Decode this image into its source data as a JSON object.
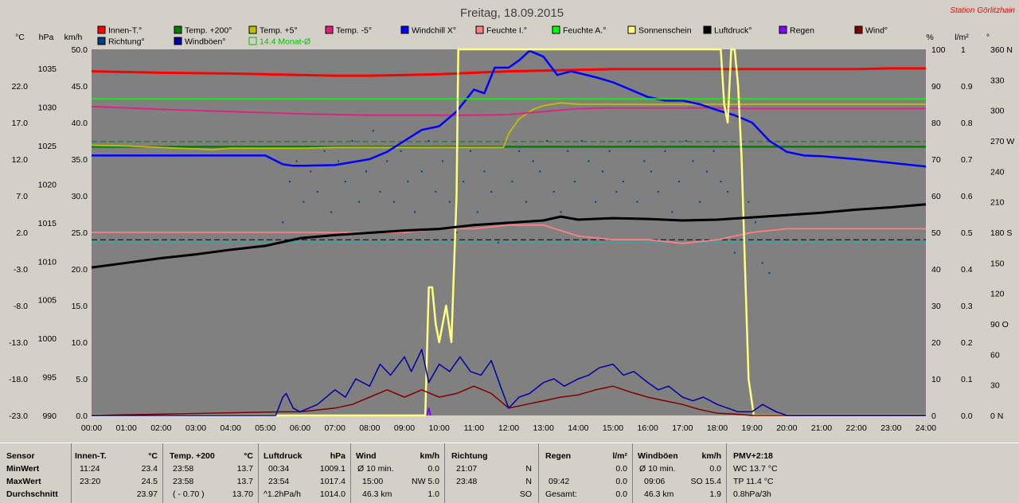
{
  "window": {
    "title": "Freitag, 18.09.2015",
    "station": "Station Görlitzhain"
  },
  "colors": {
    "plot_bg": "#808080",
    "page_bg": "#d4d0c8",
    "innen": "#ff0000",
    "temp200": "#008000",
    "temp5": "#c0c000",
    "temp_5": "#e0207f",
    "windchill": "#0000ff",
    "feuchte_i": "#ff8080",
    "feuchte_a": "#00ff00",
    "sonne": "#ffff80",
    "luftdruck": "#000000",
    "regen": "#8000ff",
    "wind": "#800000",
    "richtung": "#004080",
    "windboeen": "#0000a0"
  },
  "legend": [
    {
      "label": "Innen-T.°",
      "color": "#ff0000"
    },
    {
      "label": "Temp. +200°",
      "color": "#008000"
    },
    {
      "label": "Temp. +5°",
      "color": "#c0c000"
    },
    {
      "label": "Temp. -5°",
      "color": "#e0207f"
    },
    {
      "label": "Windchill X°",
      "color": "#0000ff"
    },
    {
      "label": "Feuchte I.°",
      "color": "#ff8080"
    },
    {
      "label": "Feuchte A.°",
      "color": "#00ff00"
    },
    {
      "label": "Sonnenschein",
      "color": "#ffff80"
    },
    {
      "label": "Luftdruck°",
      "color": "#000000"
    },
    {
      "label": "Regen",
      "color": "#8000ff"
    },
    {
      "label": "Wind°",
      "color": "#800000"
    },
    {
      "label": "Richtung°",
      "color": "#004080"
    },
    {
      "label": "Windböen°",
      "color": "#0000a0"
    },
    {
      "label": "14.4 Monat-Ø",
      "color": "#00c000"
    }
  ],
  "chart_data": {
    "type": "line",
    "xlim": [
      0,
      24
    ],
    "x_ticks": [
      "00:00",
      "01:00",
      "02:00",
      "03:00",
      "04:00",
      "05:00",
      "06:00",
      "07:00",
      "08:00",
      "09:00",
      "10:00",
      "11:00",
      "12:00",
      "13:00",
      "14:00",
      "15:00",
      "16:00",
      "17:00",
      "18:00",
      "19:00",
      "20:00",
      "21:00",
      "22:00",
      "23:00",
      "24:00"
    ],
    "axes": {
      "temp": {
        "unit": "°C",
        "ticks": [
          "22.0",
          "17.0",
          "12.0",
          "7.0",
          "2.0",
          "-3.0",
          "-8.0",
          "-13.0",
          "-18.0",
          "-23.0"
        ],
        "ylim": [
          -23,
          27
        ]
      },
      "pressure": {
        "unit": "hPa",
        "ticks": [
          "1035",
          "1030",
          "1025",
          "1020",
          "1015",
          "1010",
          "1005",
          "1000",
          "995",
          "990"
        ],
        "ylim": [
          990,
          1037.5
        ]
      },
      "wind": {
        "unit": "km/h",
        "ticks": [
          "50.0",
          "45.0",
          "40.0",
          "35.0",
          "30.0",
          "25.0",
          "20.0",
          "15.0",
          "10.0",
          "5.0",
          "0.0"
        ],
        "ylim": [
          0,
          50
        ]
      },
      "humidity": {
        "unit": "%",
        "ticks": [
          "100",
          "90",
          "80",
          "70",
          "60",
          "50",
          "40",
          "30",
          "20",
          "10",
          "0"
        ],
        "ylim": [
          0,
          100
        ]
      },
      "rain": {
        "unit": "l/m²",
        "ticks": [
          "1",
          "0.9",
          "0.8",
          "0.7",
          "0.6",
          "0.5",
          "0.4",
          "0.3",
          "0.2",
          "0.1",
          "0.0"
        ],
        "ylim": [
          0,
          1
        ]
      },
      "direction": {
        "unit": "°",
        "ticks": [
          "360 N",
          "330",
          "300",
          "270 W",
          "240",
          "210",
          "180 S",
          "150",
          "120",
          "90 O",
          "60",
          "30",
          "0 N"
        ],
        "ylim": [
          0,
          360
        ]
      }
    },
    "series": [
      {
        "name": "Innen-T.°",
        "axis": "temp",
        "color": "#ff0000",
        "x": [
          0,
          2,
          4,
          6,
          7,
          8,
          9,
          10,
          11,
          12,
          13,
          14,
          15,
          16,
          17,
          18,
          19,
          20,
          21,
          22,
          23,
          24
        ],
        "y": [
          24.0,
          23.8,
          23.7,
          23.5,
          23.4,
          23.4,
          23.5,
          23.6,
          23.8,
          24.0,
          24.1,
          24.2,
          24.3,
          24.3,
          24.3,
          24.3,
          24.3,
          24.3,
          24.3,
          24.3,
          24.4,
          24.4
        ]
      },
      {
        "name": "Temp. +200°",
        "axis": "temp",
        "color": "#008000",
        "x": [
          0,
          24
        ],
        "y": [
          13.7,
          13.7
        ]
      },
      {
        "name": "Temp. +5°",
        "axis": "temp",
        "color": "#c0c000",
        "x": [
          0,
          1,
          2,
          3,
          3.5,
          4,
          5,
          6,
          7,
          8,
          9,
          10,
          11,
          11.85,
          12,
          12.3,
          12.7,
          13,
          13.5,
          14,
          15,
          16,
          17,
          18,
          19,
          20,
          21,
          22,
          23,
          24
        ],
        "y": [
          13.9,
          13.8,
          13.6,
          13.4,
          13.3,
          13.5,
          13.5,
          13.5,
          13.6,
          13.6,
          13.6,
          13.6,
          13.6,
          13.6,
          15.5,
          17.5,
          18.8,
          19.3,
          19.7,
          19.5,
          19.5,
          19.5,
          19.5,
          19.5,
          19.5,
          19.5,
          19.5,
          19.5,
          19.5,
          19.5
        ]
      },
      {
        "name": "Temp. -5°",
        "axis": "temp",
        "color": "#e0207f",
        "x": [
          0,
          2,
          4,
          6,
          8,
          10,
          11,
          12,
          13,
          14,
          15,
          16,
          17,
          18,
          19,
          20,
          21,
          22,
          23,
          24
        ],
        "y": [
          19.2,
          18.8,
          18.5,
          18.2,
          18.0,
          18.0,
          18.0,
          18.1,
          18.5,
          18.9,
          19.0,
          19.0,
          19.0,
          19.0,
          18.9,
          18.9,
          18.9,
          18.9,
          18.9,
          18.9
        ]
      },
      {
        "name": "Windchill X°",
        "axis": "temp",
        "color": "#0000ff",
        "x": [
          0,
          1,
          2,
          3,
          4,
          5,
          5.5,
          5.8,
          6,
          7,
          8,
          8.5,
          9,
          9.5,
          10,
          10.5,
          11,
          11.3,
          11.6,
          12,
          12.3,
          12.6,
          13,
          13.4,
          13.8,
          14.5,
          15,
          16,
          16.5,
          17,
          17.5,
          18,
          18.5,
          19,
          19.5,
          20,
          20.5,
          21,
          22,
          23,
          24
        ],
        "y": [
          12.5,
          12.5,
          12.5,
          12.5,
          12.5,
          12.5,
          11.3,
          11.1,
          11.1,
          11.2,
          12.0,
          13.0,
          14.5,
          16.0,
          16.5,
          18.5,
          21.5,
          21.0,
          24.5,
          24.5,
          25.5,
          26.8,
          26.0,
          23.5,
          24.0,
          23.2,
          22.5,
          20.5,
          20.0,
          20.0,
          19.5,
          18.7,
          18.0,
          17.0,
          14.5,
          13.0,
          12.5,
          12.4,
          12.0,
          11.5,
          11.0
        ]
      },
      {
        "name": "Feuchte I.°",
        "axis": "humidity",
        "color": "#ff8080",
        "x": [
          0,
          2,
          4,
          5,
          6,
          7,
          8,
          9,
          10,
          11,
          12,
          13,
          14,
          15,
          16,
          17,
          18,
          18.5,
          19,
          20,
          21,
          22,
          23,
          24
        ],
        "y": [
          50,
          50,
          50,
          50,
          50,
          50,
          50,
          50,
          51,
          51,
          52,
          52,
          49,
          48,
          48,
          47,
          48,
          49,
          50,
          51,
          51,
          51,
          51,
          51
        ]
      },
      {
        "name": "Feuchte A.°",
        "axis": "humidity",
        "color": "#00ff00",
        "x": [
          0,
          24
        ],
        "y": [
          86.5,
          86.5
        ]
      },
      {
        "name": "Sonnenschein",
        "axis": "humidity",
        "color": "#ffff80",
        "x": [
          0,
          9.6,
          9.7,
          9.8,
          9.9,
          10,
          10.2,
          10.35,
          10.5,
          10.55,
          10.6,
          10.7,
          11,
          12,
          13,
          14,
          15,
          16,
          17,
          17.95,
          18,
          18.1,
          18.2,
          18.3,
          18.4,
          18.5,
          18.6,
          18.7,
          18.8,
          18.9,
          19.05,
          24
        ],
        "y": [
          0,
          0,
          35,
          35,
          25,
          20,
          30,
          20,
          60,
          100,
          100,
          100,
          100,
          100,
          100,
          100,
          100,
          100,
          100,
          100,
          100,
          100,
          85,
          80,
          100,
          100,
          90,
          70,
          40,
          10,
          0,
          0
        ]
      },
      {
        "name": "Luftdruck°",
        "axis": "pressure",
        "color": "#000000",
        "x": [
          0,
          1,
          2,
          3,
          4,
          5,
          5.5,
          6,
          7,
          8,
          9,
          10,
          11,
          12,
          13,
          13.5,
          14,
          15,
          16,
          17,
          18,
          19,
          20,
          21,
          22,
          23,
          24
        ],
        "y": [
          1009.2,
          1009.8,
          1010.4,
          1010.9,
          1011.5,
          1012.0,
          1012.5,
          1013.0,
          1013.4,
          1013.7,
          1014.0,
          1014.2,
          1014.7,
          1015.0,
          1015.3,
          1015.8,
          1015.4,
          1015.6,
          1015.5,
          1015.3,
          1015.4,
          1015.7,
          1016.0,
          1016.3,
          1016.7,
          1017.0,
          1017.4
        ]
      },
      {
        "name": "Wind°",
        "axis": "wind",
        "color": "#800000",
        "x": [
          0,
          5.5,
          6,
          7,
          7.5,
          8,
          8.5,
          9,
          9.5,
          10,
          10.5,
          11,
          11.5,
          12,
          12.5,
          13,
          13.5,
          14,
          14.5,
          15,
          15.5,
          16,
          16.5,
          17,
          17.5,
          18,
          18.5,
          19,
          24
        ],
        "y": [
          0,
          0.5,
          0.5,
          1,
          1.5,
          2.5,
          3.5,
          2.5,
          3.5,
          2.5,
          3.0,
          4.0,
          3.0,
          1.0,
          1.5,
          2.0,
          2.5,
          2.8,
          3.5,
          4.0,
          3.2,
          2.5,
          2.0,
          1.5,
          0.8,
          0.3,
          0.2,
          0,
          0
        ]
      },
      {
        "name": "Windböen°",
        "axis": "wind",
        "color": "#0000a0",
        "x": [
          0,
          5.3,
          5.5,
          5.6,
          5.8,
          6,
          6.5,
          7,
          7.3,
          7.6,
          8,
          8.3,
          8.6,
          9,
          9.2,
          9.5,
          9.7,
          10,
          10.3,
          10.6,
          10.9,
          11.2,
          11.5,
          11.8,
          12,
          12.3,
          12.6,
          13,
          13.3,
          13.6,
          14,
          14.3,
          14.6,
          15,
          15.3,
          15.6,
          16,
          16.3,
          16.6,
          17,
          17.3,
          17.6,
          18,
          18.3,
          18.6,
          19,
          19.3,
          19.7,
          20,
          24
        ],
        "y": [
          0,
          0,
          2.5,
          3.0,
          1.0,
          0.5,
          1.5,
          3.5,
          2.5,
          5.0,
          4.0,
          7.0,
          5.5,
          8.0,
          6.0,
          9.0,
          4.5,
          7.0,
          6.0,
          8.0,
          6.0,
          5.5,
          7.5,
          3.5,
          1.0,
          2.5,
          3.0,
          4.5,
          5.0,
          4.0,
          5.0,
          5.5,
          6.5,
          7.0,
          5.5,
          6.0,
          4.5,
          3.5,
          4.0,
          2.5,
          2.0,
          2.5,
          1.5,
          1.0,
          0.5,
          0.5,
          1.5,
          0.5,
          0,
          0
        ]
      },
      {
        "name": "Regen",
        "axis": "rain",
        "color": "#8000ff",
        "x": [
          9.65,
          9.7,
          9.75
        ],
        "y": [
          0,
          0.02,
          0
        ]
      }
    ],
    "direction_points": {
      "x": [
        5.5,
        5.7,
        5.9,
        6.1,
        6.3,
        6.5,
        6.7,
        6.9,
        7.1,
        7.3,
        7.5,
        7.7,
        7.9,
        8.1,
        8.3,
        8.5,
        8.7,
        8.9,
        9.1,
        9.3,
        9.5,
        9.7,
        9.9,
        10.1,
        10.3,
        10.5,
        10.7,
        10.9,
        11.1,
        11.3,
        11.5,
        11.7,
        11.9,
        12.1,
        12.3,
        12.5,
        12.7,
        12.9,
        13.1,
        13.3,
        13.5,
        13.7,
        13.9,
        14.1,
        14.3,
        14.5,
        14.7,
        14.9,
        15.1,
        15.3,
        15.5,
        15.7,
        15.9,
        16.1,
        16.3,
        16.5,
        16.7,
        16.9,
        17.1,
        17.3,
        17.5,
        17.7,
        17.9,
        18.1,
        18.3,
        18.5,
        18.7,
        18.9,
        19.1,
        19.3,
        19.5
      ],
      "y": [
        190,
        230,
        250,
        210,
        240,
        220,
        260,
        200,
        250,
        230,
        270,
        210,
        240,
        280,
        220,
        250,
        210,
        260,
        230,
        200,
        240,
        270,
        220,
        250,
        210,
        180,
        230,
        260,
        200,
        240,
        220,
        170,
        190,
        230,
        260,
        210,
        250,
        240,
        270,
        220,
        200,
        260,
        230,
        270,
        250,
        210,
        240,
        260,
        220,
        230,
        270,
        210,
        250,
        240,
        220,
        260,
        200,
        230,
        270,
        250,
        210,
        240,
        260,
        230,
        220,
        160,
        250,
        210,
        190,
        150,
        140
      ]
    },
    "reference_lines": [
      {
        "axis": "temp",
        "value": 1.0,
        "color": "#000000",
        "style": "dashed"
      },
      {
        "axis": "temp",
        "value": 0.6,
        "color": "#00c0c0",
        "style": "dashed"
      },
      {
        "axis": "temp",
        "value": 14.4,
        "color": "#008000",
        "style": "dashed"
      }
    ]
  },
  "stats": {
    "sensor": {
      "title": "Sensor",
      "rows": [
        "MinWert",
        "MaxWert",
        "Durchschnitt"
      ]
    },
    "innen": {
      "title": "Innen-T.",
      "unit": "°C",
      "rows": [
        [
          "11:24",
          "23.4"
        ],
        [
          "23:20",
          "24.5"
        ],
        [
          "",
          "23.97"
        ]
      ]
    },
    "temp200": {
      "title": "Temp. +200",
      "unit": "°C",
      "rows": [
        [
          "23:58",
          "13.7"
        ],
        [
          "23:58",
          "13.7"
        ],
        [
          "( - 0.70 )",
          "13.70"
        ]
      ]
    },
    "luftdruck": {
      "title": "Luftdruck",
      "unit": "hPa",
      "rows": [
        [
          "00:34",
          "1009.1"
        ],
        [
          "23:54",
          "1017.4"
        ],
        [
          "^1.2hPa/h",
          "1014.0"
        ]
      ]
    },
    "wind": {
      "title": "Wind",
      "unit": "km/h",
      "rows": [
        [
          "Ø 10 min.",
          "0.0"
        ],
        [
          "15:00",
          "NW 5.0"
        ],
        [
          "46.3 km",
          "1.0"
        ]
      ]
    },
    "richtung": {
      "title": "Richtung",
      "rows": [
        [
          "21:07",
          "N"
        ],
        [
          "23:48",
          "N"
        ],
        [
          "",
          "SO"
        ]
      ]
    },
    "regen": {
      "title": "Regen",
      "unit": "l/m²",
      "rows": [
        [
          "",
          "0.0"
        ],
        [
          "09:42",
          "0.0"
        ],
        [
          "Gesamt:",
          "0.0"
        ]
      ]
    },
    "windboeen": {
      "title": "Windböen",
      "unit": "km/h",
      "rows": [
        [
          "Ø 10 min.",
          "0.0"
        ],
        [
          "09:06",
          "SO 15.4"
        ],
        [
          "46.3 km",
          "1.9"
        ]
      ]
    },
    "pmv": {
      "title": "PMV+2:18",
      "rows": [
        "WC 13.7 °C",
        "TP 11.4 °C",
        "0.8hPa/3h"
      ]
    }
  }
}
